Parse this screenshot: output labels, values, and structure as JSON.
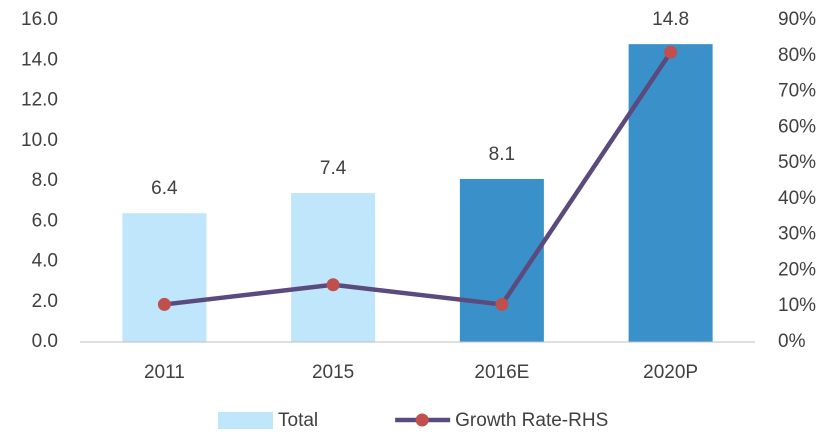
{
  "chart_data": {
    "type": "bar",
    "categories": [
      "2011",
      "2015",
      "2016E",
      "2020P"
    ],
    "series": [
      {
        "name": "Total",
        "type": "bar",
        "color": "#bfe6fb",
        "colors": [
          "#bfe6fb",
          "#bfe6fb",
          "#3a90c8",
          "#3a90c8"
        ],
        "values": [
          6.4,
          7.4,
          8.1,
          14.8
        ]
      },
      {
        "name": "Growth Rate-RHS",
        "type": "line",
        "axis": "y2",
        "color": "#5b4a7e",
        "marker_color": "#c0504d",
        "values": [
          10.5,
          16,
          10.5,
          81
        ]
      }
    ],
    "ylim": [
      0,
      16
    ],
    "yticks": [
      {
        "value": 0,
        "label": "0.0"
      },
      {
        "value": 2,
        "label": "2.0"
      },
      {
        "value": 4,
        "label": "4.0"
      },
      {
        "value": 6,
        "label": "6.0"
      },
      {
        "value": 8,
        "label": "8.0"
      },
      {
        "value": 10,
        "label": "10.0"
      },
      {
        "value": 12,
        "label": "12.0"
      },
      {
        "value": 14,
        "label": "14.0"
      },
      {
        "value": 16,
        "label": "16.0"
      }
    ],
    "y2lim": [
      0,
      90
    ],
    "y2ticks": [
      {
        "value": 0,
        "label": "0%"
      },
      {
        "value": 10,
        "label": "10%"
      },
      {
        "value": 20,
        "label": "20%"
      },
      {
        "value": 30,
        "label": "30%"
      },
      {
        "value": 40,
        "label": "40%"
      },
      {
        "value": 50,
        "label": "50%"
      },
      {
        "value": 60,
        "label": "60%"
      },
      {
        "value": 70,
        "label": "70%"
      },
      {
        "value": 80,
        "label": "80%"
      },
      {
        "value": 90,
        "label": "90%"
      }
    ],
    "grid": false,
    "legend": "bottom"
  }
}
